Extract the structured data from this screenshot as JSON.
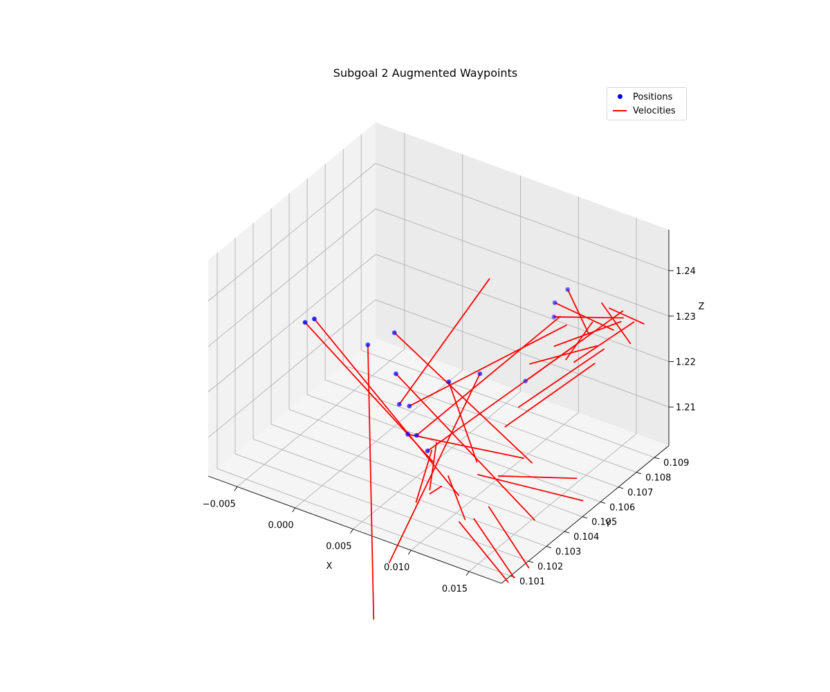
{
  "chart_data": {
    "type": "scatter",
    "projection": "3d",
    "title": "Subgoal 2 Augmented Waypoints",
    "xlabel": "X",
    "ylabel": "Y",
    "zlabel": "Z",
    "xlim": [
      -0.0075,
      0.0178
    ],
    "ylim": [
      0.1005,
      0.1098
    ],
    "zlim": [
      1.2015,
      1.249
    ],
    "xticks": [
      "−0.005",
      "0.000",
      "0.005",
      "0.010",
      "0.015"
    ],
    "yticks": [
      "0.101",
      "0.102",
      "0.103",
      "0.104",
      "0.105",
      "0.106",
      "0.107",
      "0.108",
      "0.109"
    ],
    "zticks": [
      "1.21",
      "1.22",
      "1.23",
      "1.24"
    ],
    "grid": true,
    "legend_position": "top-right",
    "colors": {
      "positions": "#0000ff",
      "velocities": "#ff0000"
    },
    "series": [
      {
        "name": "Positions",
        "kind": "scatter",
        "points": [
          {
            "x": -0.0038,
            "y": 0.1035,
            "z": 1.229
          },
          {
            "x": -0.003,
            "y": 0.1035,
            "z": 1.2305
          },
          {
            "x": -0.0004,
            "y": 0.1048,
            "z": 1.223
          },
          {
            "x": 0.002,
            "y": 0.105,
            "z": 1.2115
          },
          {
            "x": 0.0024,
            "y": 0.1053,
            "z": 1.2105
          },
          {
            "x": 0.0008,
            "y": 0.1055,
            "z": 1.2245
          },
          {
            "x": 0.0014,
            "y": 0.1052,
            "z": 1.217
          },
          {
            "x": 0.0046,
            "y": 0.1049,
            "z": 1.204
          },
          {
            "x": 0.0038,
            "y": 0.1048,
            "z": 1.207
          },
          {
            "x": 0.0032,
            "y": 0.1047,
            "z": 1.207
          },
          {
            "x": 0.0058,
            "y": 0.1053,
            "z": 1.219
          },
          {
            "x": 0.0074,
            "y": 0.106,
            "z": 1.22
          },
          {
            "x": 0.009,
            "y": 0.1075,
            "z": 1.215
          },
          {
            "x": 0.011,
            "y": 0.1078,
            "z": 1.23
          },
          {
            "x": 0.012,
            "y": 0.1072,
            "z": 1.236
          },
          {
            "x": 0.0128,
            "y": 0.1074,
            "z": 1.239
          }
        ]
      },
      {
        "name": "Velocities",
        "kind": "segments",
        "segments": [
          [
            [
              -0.0038,
              0.1035,
              1.229
            ],
            [
              0.008,
              0.103,
              1.211
            ]
          ],
          [
            [
              -0.003,
              0.1035,
              1.2305
            ],
            [
              0.011,
              0.1025,
              1.208
            ]
          ],
          [
            [
              -0.0004,
              0.1048,
              1.223
            ],
            [
              0.006,
              0.101,
              1.181
            ]
          ],
          [
            [
              0.002,
              0.105,
              1.2115
            ],
            [
              0.009,
              0.1055,
              1.244
            ]
          ],
          [
            [
              0.0024,
              0.1053,
              1.2105
            ],
            [
              0.013,
              0.1072,
              1.232
            ]
          ],
          [
            [
              0.0008,
              0.1055,
              1.2245
            ],
            [
              0.015,
              0.104,
              1.214
            ]
          ],
          [
            [
              0.0014,
              0.1052,
              1.217
            ],
            [
              0.016,
              0.1035,
              1.204
            ]
          ],
          [
            [
              0.0046,
              0.1049,
              1.204
            ],
            [
              0.014,
              0.107,
              1.229
            ]
          ],
          [
            [
              0.0038,
              0.1048,
              1.207
            ],
            [
              0.012,
              0.1075,
              1.232
            ]
          ],
          [
            [
              0.0032,
              0.1047,
              1.207
            ],
            [
              0.0135,
              0.1045,
              1.212
            ]
          ],
          [
            [
              0.0058,
              0.1053,
              1.219
            ],
            [
              0.009,
              0.1048,
              1.206
            ]
          ],
          [
            [
              0.0074,
              0.106,
              1.22
            ],
            [
              0.0058,
              0.102,
              1.19
            ]
          ],
          [
            [
              0.009,
              0.1075,
              1.215
            ],
            [
              0.016,
              0.1084,
              1.234
            ]
          ],
          [
            [
              0.011,
              0.1078,
              1.23
            ],
            [
              0.0162,
              0.1083,
              1.233
            ]
          ],
          [
            [
              0.012,
              0.1072,
              1.236
            ],
            [
              0.0155,
              0.1082,
              1.23
            ]
          ],
          [
            [
              0.0128,
              0.1074,
              1.239
            ],
            [
              0.014,
              0.1078,
              1.229
            ]
          ],
          [
            [
              0.01,
              0.1071,
              1.221
            ],
            [
              0.015,
              0.1076,
              1.228
            ]
          ],
          [
            [
              0.0115,
              0.1075,
              1.225
            ],
            [
              0.016,
              0.1083,
              1.232
            ]
          ],
          [
            [
              0.014,
              0.108,
              1.231
            ],
            [
              0.0125,
              0.1075,
              1.223
            ]
          ],
          [
            [
              0.0135,
              0.1073,
              1.224
            ],
            [
              0.0168,
              0.1085,
              1.232
            ]
          ],
          [
            [
              0.0145,
              0.1082,
              1.235
            ],
            [
              0.0165,
              0.1085,
              1.227
            ]
          ],
          [
            [
              0.015,
              0.1083,
              1.234
            ],
            [
              0.0172,
              0.1088,
              1.231
            ]
          ],
          [
            [
              0.0088,
              0.1065,
              1.208
            ],
            [
              0.0145,
              0.1078,
              1.223
            ]
          ],
          [
            [
              0.0095,
              0.1068,
              1.212
            ],
            [
              0.015,
              0.108,
              1.226
            ]
          ],
          [
            [
              0.008,
              0.1055,
              1.2
            ],
            [
              0.0155,
              0.1065,
              1.198
            ]
          ],
          [
            [
              0.009,
              0.106,
              1.199
            ],
            [
              0.0145,
              0.1068,
              1.201
            ]
          ],
          [
            [
              0.01,
              0.104,
              1.197
            ],
            [
              0.015,
              0.103,
              1.192
            ]
          ],
          [
            [
              0.0095,
              0.1035,
              1.1975
            ],
            [
              0.0148,
              0.1028,
              1.1915
            ]
          ],
          [
            [
              0.0105,
              0.1045,
              1.1985
            ],
            [
              0.0155,
              0.1035,
              1.193
            ]
          ],
          [
            [
              0.007,
              0.1045,
              1.202
            ],
            [
              0.01,
              0.1035,
              1.1985
            ]
          ],
          [
            [
              0.0062,
              0.104,
              1.199
            ],
            [
              0.0075,
              0.1038,
              1.2025
            ]
          ],
          [
            [
              0.0048,
              0.105,
              1.204
            ],
            [
              0.005,
              0.104,
              1.196
            ]
          ],
          [
            [
              0.0052,
              0.105,
              1.206
            ],
            [
              0.0054,
              0.1045,
              1.1975
            ]
          ]
        ]
      }
    ]
  }
}
